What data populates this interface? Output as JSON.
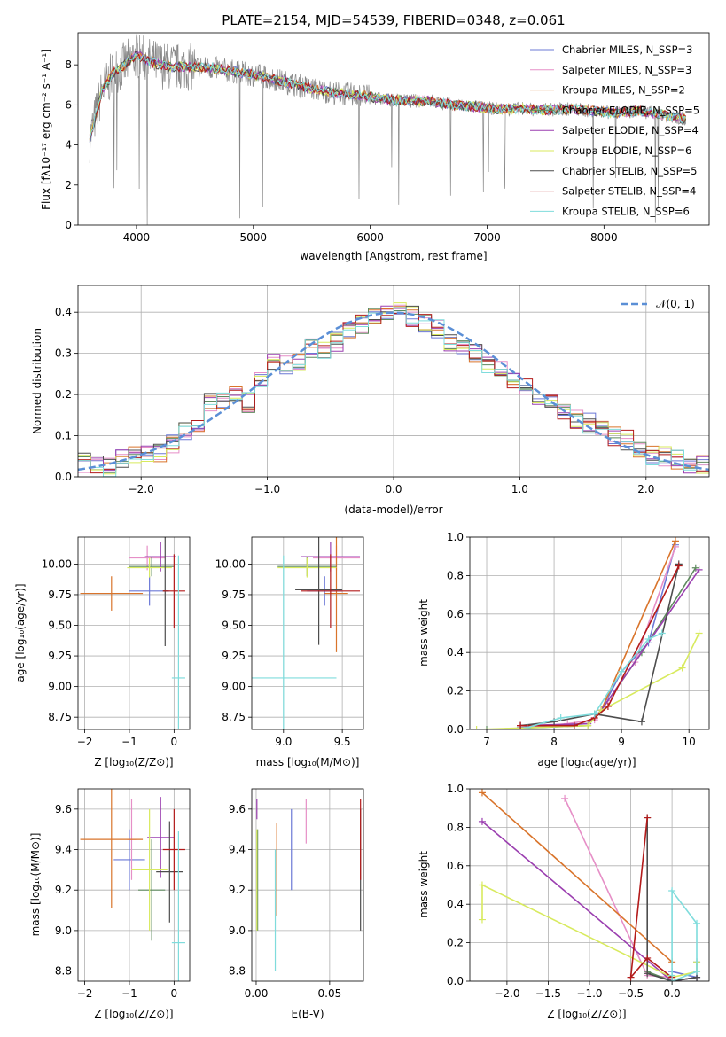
{
  "chart_data": [
    {
      "type": "line",
      "title": "PLATE=2154, MJD=54539, FIBERID=0348, z=0.061",
      "xlabel": "wavelength [Angstrom, rest frame]",
      "ylabel": "Flux [fλ10⁻¹⁷ erg cm⁻² s⁻¹ A⁻¹]",
      "xlim": [
        3500,
        8900
      ],
      "ylim": [
        0,
        9.6
      ],
      "xticks": [
        4000,
        5000,
        6000,
        7000,
        8000
      ],
      "yticks": [
        0,
        2,
        4,
        6,
        8
      ],
      "legend": "right",
      "data_color": "#888888",
      "data_trend": {
        "x": [
          3600,
          3700,
          3800,
          3900,
          4000,
          4100,
          4200,
          4300,
          4500,
          4700,
          4900,
          5100,
          5300,
          5500,
          5700,
          5900,
          6100,
          6300,
          6500,
          6700,
          6900,
          7100,
          7300,
          7500,
          7700,
          7900,
          8100,
          8300,
          8500,
          8700
        ],
        "y": [
          4.3,
          6.6,
          7.6,
          8.0,
          8.5,
          8.2,
          8.0,
          7.9,
          7.9,
          7.8,
          7.6,
          7.4,
          7.1,
          6.8,
          6.6,
          6.5,
          6.3,
          6.2,
          6.2,
          6.0,
          5.9,
          5.8,
          5.8,
          5.75,
          5.8,
          5.7,
          5.6,
          5.7,
          5.5,
          5.3
        ]
      },
      "series": [
        {
          "name": "Chabrier MILES, N_SSP=3",
          "color": "#6b78d6"
        },
        {
          "name": "Salpeter MILES, N_SSP=3",
          "color": "#e68fc7"
        },
        {
          "name": "Kroupa MILES, N_SSP=2",
          "color": "#d9742b"
        },
        {
          "name": "Chabrier ELODIE, N_SSP=5",
          "color": "#5e8a5e"
        },
        {
          "name": "Salpeter ELODIE, N_SSP=4",
          "color": "#9b3fb0"
        },
        {
          "name": "Kroupa ELODIE, N_SSP=6",
          "color": "#d8ea5e"
        },
        {
          "name": "Chabrier STELIB, N_SSP=5",
          "color": "#4d4d4d"
        },
        {
          "name": "Salpeter STELIB, N_SSP=4",
          "color": "#b31b1b"
        },
        {
          "name": "Kroupa STELIB, N_SSP=6",
          "color": "#7fdcdc"
        }
      ]
    },
    {
      "type": "line",
      "title": "",
      "xlabel": "(data-model)/error",
      "ylabel": "Normed distribution",
      "xlim": [
        -2.5,
        2.5
      ],
      "ylim": [
        0,
        0.465
      ],
      "xticks": [
        -2,
        -1,
        0,
        1,
        2
      ],
      "yticks": [
        0.0,
        0.1,
        0.2,
        0.3,
        0.4
      ],
      "grid": true,
      "legend": "top-right",
      "legend_label": "𝒩(0, 1)",
      "curve_color": "#5b8fd6",
      "histogram_centers": [
        -2.45,
        -2.35,
        -2.25,
        -2.15,
        -2.05,
        -1.95,
        -1.85,
        -1.75,
        -1.65,
        -1.55,
        -1.45,
        -1.35,
        -1.25,
        -1.15,
        -1.05,
        -0.95,
        -0.85,
        -0.75,
        -0.65,
        -0.55,
        -0.45,
        -0.35,
        -0.25,
        -0.15,
        -0.05,
        0.05,
        0.15,
        0.25,
        0.35,
        0.45,
        0.55,
        0.65,
        0.75,
        0.85,
        0.95,
        1.05,
        1.15,
        1.25,
        1.35,
        1.45,
        1.55,
        1.65,
        1.75,
        1.85,
        1.95,
        2.05,
        2.15,
        2.25,
        2.35,
        2.45
      ],
      "histogram_values": [
        0.035,
        0.03,
        0.025,
        0.045,
        0.05,
        0.05,
        0.06,
        0.08,
        0.11,
        0.12,
        0.18,
        0.19,
        0.2,
        0.18,
        0.24,
        0.28,
        0.27,
        0.28,
        0.31,
        0.31,
        0.33,
        0.36,
        0.37,
        0.39,
        0.4,
        0.4,
        0.39,
        0.37,
        0.36,
        0.33,
        0.32,
        0.3,
        0.27,
        0.26,
        0.24,
        0.22,
        0.19,
        0.18,
        0.16,
        0.14,
        0.13,
        0.12,
        0.1,
        0.09,
        0.07,
        0.05,
        0.05,
        0.04,
        0.03,
        0.03
      ]
    },
    {
      "type": "scatter",
      "xlabel": "Z [log₁₀(Z/Z⊙)]",
      "ylabel": "age  [log₁₀(age/yr)]",
      "xlim": [
        -2.15,
        0.35
      ],
      "ylim": [
        8.65,
        10.22
      ],
      "xticks": [
        -2,
        -1,
        0
      ],
      "yticks": [
        8.75,
        9.0,
        9.25,
        9.5,
        9.75,
        10.0
      ],
      "grid": true,
      "points": [
        {
          "x": -0.55,
          "xerr": 0.45,
          "y": 9.78,
          "yerr": 0.12,
          "color": "#6b78d6"
        },
        {
          "x": -0.6,
          "xerr": 0.4,
          "y": 10.05,
          "yerr": 0.1,
          "color": "#e68fc7"
        },
        {
          "x": -1.4,
          "xerr": 0.7,
          "y": 9.76,
          "yerr": 0.14,
          "color": "#d9742b"
        },
        {
          "x": -0.5,
          "xerr": 0.5,
          "y": 9.98,
          "yerr": 0.08,
          "color": "#5e8a5e"
        },
        {
          "x": -0.3,
          "xerr": 0.35,
          "y": 10.06,
          "yerr": 0.12,
          "color": "#9b3fb0"
        },
        {
          "x": -0.55,
          "xerr": 0.5,
          "y": 9.97,
          "yerr": 0.08,
          "color": "#d8ea5e"
        },
        {
          "x": -0.2,
          "xerr": 0.05,
          "y": 9.78,
          "yerr": 0.45,
          "color": "#4d4d4d"
        },
        {
          "x": 0.0,
          "xerr": 0.25,
          "y": 9.78,
          "yerr": 0.3,
          "color": "#b31b1b"
        },
        {
          "x": 0.1,
          "xerr": 0.15,
          "y": 9.07,
          "yerr": 1.0,
          "color": "#7fdcdc"
        }
      ]
    },
    {
      "type": "scatter",
      "xlabel": "mass [log₁₀(M/M⊙)]",
      "ylabel": "",
      "xlim": [
        8.73,
        9.68
      ],
      "ylim": [
        8.65,
        10.22
      ],
      "xticks": [
        9.0,
        9.5
      ],
      "yticks": [
        8.75,
        9.0,
        9.25,
        9.5,
        9.75,
        10.0
      ],
      "grid": true,
      "points": [
        {
          "x": 9.35,
          "xerr": 0.15,
          "y": 9.78,
          "yerr": 0.12,
          "color": "#6b78d6"
        },
        {
          "x": 9.45,
          "xerr": 0.2,
          "y": 10.05,
          "yerr": 0.1,
          "color": "#e68fc7"
        },
        {
          "x": 9.45,
          "xerr": 0.1,
          "y": 9.76,
          "yerr": 0.48,
          "color": "#d9742b"
        },
        {
          "x": 9.2,
          "xerr": 0.25,
          "y": 9.98,
          "yerr": 0.08,
          "color": "#5e8a5e"
        },
        {
          "x": 9.4,
          "xerr": 0.25,
          "y": 10.06,
          "yerr": 0.12,
          "color": "#9b3fb0"
        },
        {
          "x": 9.2,
          "xerr": 0.25,
          "y": 9.97,
          "yerr": 0.08,
          "color": "#d8ea5e"
        },
        {
          "x": 9.3,
          "xerr": 0.2,
          "y": 9.79,
          "yerr": 0.45,
          "color": "#4d4d4d"
        },
        {
          "x": 9.4,
          "xerr": 0.25,
          "y": 9.78,
          "yerr": 0.3,
          "color": "#b31b1b"
        },
        {
          "x": 9.0,
          "xerr": 0.45,
          "y": 9.07,
          "yerr": 1.0,
          "color": "#7fdcdc"
        }
      ]
    },
    {
      "type": "line",
      "xlabel": "age  [log₁₀(age/yr)]",
      "ylabel": "mass weight",
      "xlim": [
        6.75,
        10.3
      ],
      "ylim": [
        0,
        1.0
      ],
      "xticks": [
        7,
        8,
        9,
        10
      ],
      "yticks": [
        0.0,
        0.2,
        0.4,
        0.6,
        0.8,
        1.0
      ],
      "grid": true,
      "series": [
        {
          "color": "#6b78d6",
          "x": [
            7.5,
            8.0,
            8.5,
            8.7,
            9.0,
            9.4,
            9.8
          ],
          "y": [
            0.01,
            0.02,
            0.03,
            0.1,
            0.3,
            0.45,
            0.96
          ]
        },
        {
          "color": "#e68fc7",
          "x": [
            7.6,
            8.2,
            8.6,
            8.8,
            9.2,
            9.8
          ],
          "y": [
            0.01,
            0.03,
            0.05,
            0.15,
            0.35,
            0.95
          ]
        },
        {
          "color": "#d9742b",
          "x": [
            8.7,
            9.8
          ],
          "y": [
            0.1,
            0.98
          ]
        },
        {
          "color": "#5e8a5e",
          "x": [
            7.0,
            8.5,
            8.7,
            9.3,
            10.1
          ],
          "y": [
            0.0,
            0.02,
            0.1,
            0.4,
            0.84
          ]
        },
        {
          "color": "#9b3fb0",
          "x": [
            7.5,
            8.5,
            8.7,
            10.15
          ],
          "y": [
            0.02,
            0.03,
            0.1,
            0.83
          ]
        },
        {
          "color": "#d8ea5e",
          "x": [
            6.85,
            8.5,
            8.7,
            9.9,
            10.15
          ],
          "y": [
            0.0,
            0.02,
            0.1,
            0.32,
            0.5
          ]
        },
        {
          "color": "#4d4d4d",
          "x": [
            7.5,
            8.0,
            8.6,
            9.3,
            9.85
          ],
          "y": [
            0.02,
            0.04,
            0.08,
            0.04,
            0.86
          ]
        },
        {
          "color": "#b31b1b",
          "x": [
            7.5,
            8.3,
            8.6,
            8.8,
            9.85
          ],
          "y": [
            0.02,
            0.02,
            0.06,
            0.12,
            0.85
          ]
        },
        {
          "color": "#7fdcdc",
          "x": [
            7.6,
            8.1,
            8.6,
            9.0,
            9.4,
            9.6
          ],
          "y": [
            0.01,
            0.06,
            0.08,
            0.3,
            0.47,
            0.5
          ]
        }
      ]
    },
    {
      "type": "scatter",
      "xlabel": "Z [log₁₀(Z/Z⊙)]",
      "ylabel": "mass [log₁₀(M/M⊙)]",
      "xlim": [
        -2.15,
        0.35
      ],
      "ylim": [
        8.75,
        9.7
      ],
      "xticks": [
        -2,
        -1,
        0
      ],
      "yticks": [
        8.8,
        9.0,
        9.2,
        9.4,
        9.6
      ],
      "grid": true,
      "points": [
        {
          "x": -1.0,
          "xerr": 0.35,
          "y": 9.35,
          "yerr": 0.15,
          "color": "#6b78d6"
        },
        {
          "x": -0.95,
          "xerr": 0.1,
          "y": 9.45,
          "yerr": 0.2,
          "color": "#e68fc7"
        },
        {
          "x": -1.4,
          "xerr": 0.7,
          "y": 9.45,
          "yerr": 0.34,
          "color": "#d9742b"
        },
        {
          "x": -0.5,
          "xerr": 0.3,
          "y": 9.2,
          "yerr": 0.25,
          "color": "#5e8a5e"
        },
        {
          "x": -0.3,
          "xerr": 0.3,
          "y": 9.46,
          "yerr": 0.2,
          "color": "#9b3fb0"
        },
        {
          "x": -0.55,
          "xerr": 0.4,
          "y": 9.3,
          "yerr": 0.3,
          "color": "#d8ea5e"
        },
        {
          "x": -0.1,
          "xerr": 0.3,
          "y": 9.29,
          "yerr": 0.25,
          "color": "#4d4d4d"
        },
        {
          "x": 0.0,
          "xerr": 0.25,
          "y": 9.4,
          "yerr": 0.2,
          "color": "#b31b1b"
        },
        {
          "x": 0.1,
          "xerr": 0.15,
          "y": 8.94,
          "yerr": 0.55,
          "color": "#7fdcdc"
        }
      ]
    },
    {
      "type": "scatter",
      "xlabel": "E(B-V)",
      "ylabel": "",
      "xlim": [
        -0.003,
        0.073
      ],
      "ylim": [
        8.75,
        9.7
      ],
      "xticks": [
        0.0,
        0.05
      ],
      "xtick_labels": [
        "0.00",
        "0.05"
      ],
      "yticks": [
        8.8,
        9.0,
        9.2,
        9.4,
        9.6
      ],
      "grid": true,
      "points": [
        {
          "x": 0.024,
          "y": 9.4,
          "yerr": 0.2,
          "color": "#6b78d6"
        },
        {
          "x": 0.034,
          "y": 9.54,
          "yerr": 0.11,
          "color": "#e68fc7"
        },
        {
          "x": 0.014,
          "y": 9.3,
          "yerr": 0.23,
          "color": "#d9742b"
        },
        {
          "x": 0.001,
          "y": 9.25,
          "yerr": 0.25,
          "color": "#5e8a5e"
        },
        {
          "x": 0.0005,
          "y": 9.6,
          "yerr": 0.05,
          "color": "#9b3fb0"
        },
        {
          "x": 0.0005,
          "y": 9.25,
          "yerr": 0.25,
          "color": "#d8ea5e"
        },
        {
          "x": 0.071,
          "y": 9.3,
          "yerr": 0.3,
          "color": "#4d4d4d"
        },
        {
          "x": 0.071,
          "y": 9.45,
          "yerr": 0.2,
          "color": "#b31b1b"
        },
        {
          "x": 0.013,
          "y": 9.1,
          "yerr": 0.3,
          "color": "#7fdcdc"
        }
      ]
    },
    {
      "type": "line",
      "xlabel": "Z [log₁₀(Z/Z⊙)]",
      "ylabel": "mass weight",
      "xlim": [
        -2.45,
        0.45
      ],
      "ylim": [
        0,
        1.0
      ],
      "xticks": [
        -2.0,
        -1.5,
        -1.0,
        -0.5,
        0.0
      ],
      "grid": true,
      "yticks": [
        0.0,
        0.2,
        0.4,
        0.6,
        0.8,
        1.0
      ],
      "series": [
        {
          "color": "#6b78d6",
          "x": [
            0.0,
            0.3,
            0.3
          ],
          "y": [
            0.05,
            0.02,
            0.1
          ]
        },
        {
          "color": "#e68fc7",
          "x": [
            -1.3,
            -0.3,
            0.0
          ],
          "y": [
            0.95,
            0.03,
            0.02
          ]
        },
        {
          "color": "#d9742b",
          "x": [
            -2.3,
            0.0
          ],
          "y": [
            0.98,
            0.1
          ]
        },
        {
          "color": "#5e8a5e",
          "x": [
            -0.3,
            0.0,
            0.3
          ],
          "y": [
            0.05,
            0.0,
            0.02
          ]
        },
        {
          "color": "#9b3fb0",
          "x": [
            -2.3,
            0.0,
            0.3
          ],
          "y": [
            0.83,
            0.0,
            0.02
          ]
        },
        {
          "color": "#d8ea5e",
          "x": [
            -2.3,
            -2.3,
            0.0,
            0.3,
            0.3
          ],
          "y": [
            0.32,
            0.5,
            0.02,
            0.05,
            0.1
          ]
        },
        {
          "color": "#4d4d4d",
          "x": [
            -0.3,
            -0.3,
            0.0,
            0.3
          ],
          "y": [
            0.85,
            0.04,
            0.0,
            0.02
          ]
        },
        {
          "color": "#b31b1b",
          "x": [
            -0.3,
            -0.5,
            -0.3,
            0.0
          ],
          "y": [
            0.85,
            0.02,
            0.12,
            0.02
          ]
        },
        {
          "color": "#7fdcdc",
          "x": [
            0.0,
            0.0,
            0.3,
            0.3,
            0.0
          ],
          "y": [
            0.03,
            0.47,
            0.3,
            0.05,
            0.0
          ]
        }
      ]
    }
  ]
}
